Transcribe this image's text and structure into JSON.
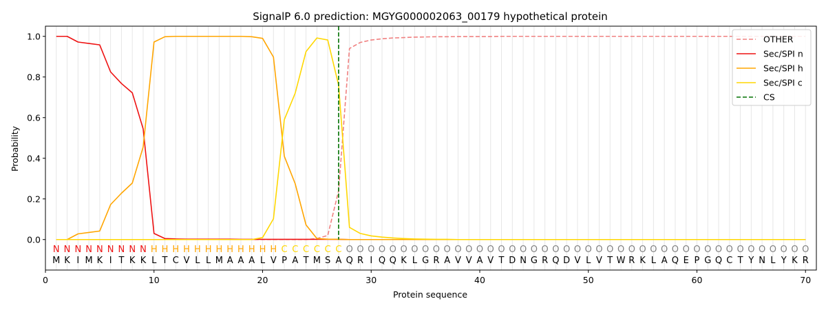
{
  "chart_data": {
    "type": "line",
    "title": "SignalP 6.0 prediction: MGYG000002063_00179 hypothetical protein",
    "xlabel": "Protein sequence",
    "ylabel": "Probability",
    "xlim": [
      0,
      71
    ],
    "ylim": [
      -0.15,
      1.05
    ],
    "xticks": [
      0,
      10,
      20,
      30,
      40,
      50,
      60,
      70
    ],
    "yticks": [
      0.0,
      0.2,
      0.4,
      0.6,
      0.8,
      1.0
    ],
    "vertical_gridlines": "every residue position",
    "legend_position": "top-right",
    "x": [
      1,
      2,
      3,
      4,
      5,
      6,
      7,
      8,
      9,
      10,
      11,
      12,
      13,
      14,
      15,
      16,
      17,
      18,
      19,
      20,
      21,
      22,
      23,
      24,
      25,
      26,
      27,
      28,
      29,
      30,
      31,
      32,
      33,
      34,
      35,
      36,
      37,
      38,
      39,
      40,
      41,
      42,
      43,
      44,
      45,
      46,
      47,
      48,
      49,
      50,
      51,
      52,
      53,
      54,
      55,
      56,
      57,
      58,
      59,
      60,
      61,
      62,
      63,
      64,
      65,
      66,
      67,
      68,
      69,
      70
    ],
    "sequence": [
      "M",
      "K",
      "I",
      "M",
      "K",
      "I",
      "T",
      "K",
      "K",
      "L",
      "T",
      "C",
      "V",
      "L",
      "L",
      "M",
      "A",
      "A",
      "A",
      "L",
      "V",
      "P",
      "A",
      "T",
      "M",
      "S",
      "A",
      "Q",
      "R",
      "I",
      "Q",
      "Q",
      "K",
      "L",
      "G",
      "R",
      "A",
      "V",
      "V",
      "A",
      "V",
      "T",
      "D",
      "N",
      "G",
      "R",
      "Q",
      "D",
      "V",
      "L",
      "V",
      "T",
      "W",
      "R",
      "K",
      "L",
      "A",
      "Q",
      "E",
      "P",
      "G",
      "Q",
      "C",
      "T",
      "Y",
      "N",
      "L",
      "Y",
      "K",
      "R"
    ],
    "labels": [
      "N",
      "N",
      "N",
      "N",
      "N",
      "N",
      "N",
      "N",
      "N",
      "H",
      "H",
      "H",
      "H",
      "H",
      "H",
      "H",
      "H",
      "H",
      "H",
      "H",
      "H",
      "C",
      "C",
      "C",
      "C",
      "C",
      "C",
      "O",
      "O",
      "O",
      "O",
      "O",
      "O",
      "O",
      "O",
      "O",
      "O",
      "O",
      "O",
      "O",
      "O",
      "O",
      "O",
      "O",
      "O",
      "O",
      "O",
      "O",
      "O",
      "O",
      "O",
      "O",
      "O",
      "O",
      "O",
      "O",
      "O",
      "O",
      "O",
      "O",
      "O",
      "O",
      "O",
      "O",
      "O",
      "O",
      "O",
      "O",
      "O",
      "O"
    ],
    "label_colors": {
      "N": "#ee1111",
      "H": "#ffa500",
      "C": "#ffd700",
      "O": "#808080"
    },
    "cleavage_site": 27,
    "series": [
      {
        "name": "OTHER",
        "color": "#f08080",
        "dash": "dashed",
        "values": [
          0,
          0,
          0,
          0,
          0,
          0,
          0,
          0,
          0,
          0,
          0,
          0,
          0,
          0,
          0,
          0,
          0,
          0,
          0,
          0,
          0,
          0,
          0,
          0,
          0.005,
          0.02,
          0.24,
          0.94,
          0.97,
          0.982,
          0.988,
          0.992,
          0.994,
          0.996,
          0.997,
          0.998,
          0.998,
          0.999,
          0.999,
          0.999,
          0.999,
          1,
          1,
          1,
          1,
          1,
          1,
          1,
          1,
          1,
          1,
          1,
          1,
          1,
          1,
          1,
          1,
          1,
          1,
          1,
          1,
          1,
          1,
          1,
          1,
          1,
          1,
          1,
          1,
          1
        ]
      },
      {
        "name": "Sec/SPI n",
        "color": "#ee1111",
        "dash": "solid",
        "values": [
          1.0,
          1.0,
          0.972,
          0.965,
          0.958,
          0.825,
          0.768,
          0.722,
          0.545,
          0.03,
          0.005,
          0.003,
          0.002,
          0.002,
          0.002,
          0.002,
          0.002,
          0.001,
          0.001,
          0.001,
          0.001,
          0.001,
          0.001,
          0.001,
          0.001,
          0.001,
          0.001,
          0,
          0,
          0,
          0,
          0,
          0,
          0,
          0,
          0,
          0,
          0,
          0,
          0,
          0,
          0,
          0,
          0,
          0,
          0,
          0,
          0,
          0,
          0,
          0,
          0,
          0,
          0,
          0,
          0,
          0,
          0,
          0,
          0,
          0,
          0,
          0,
          0,
          0,
          0,
          0,
          0,
          0,
          0
        ]
      },
      {
        "name": "Sec/SPI h",
        "color": "#ffa500",
        "dash": "solid",
        "values": [
          0,
          0,
          0.028,
          0.035,
          0.042,
          0.172,
          0.228,
          0.278,
          0.455,
          0.972,
          0.998,
          1.0,
          1.0,
          1.0,
          1.0,
          1.0,
          1.0,
          1.0,
          0.998,
          0.99,
          0.898,
          0.41,
          0.275,
          0.072,
          0.005,
          0.002,
          0.001,
          0,
          0,
          0,
          0,
          0,
          0,
          0,
          0,
          0,
          0,
          0,
          0,
          0,
          0,
          0,
          0,
          0,
          0,
          0,
          0,
          0,
          0,
          0,
          0,
          0,
          0,
          0,
          0,
          0,
          0,
          0,
          0,
          0,
          0,
          0,
          0,
          0,
          0,
          0,
          0,
          0,
          0,
          0
        ]
      },
      {
        "name": "Sec/SPI c",
        "color": "#ffd700",
        "dash": "solid",
        "values": [
          0,
          0,
          0,
          0,
          0,
          0,
          0,
          0,
          0,
          0,
          0,
          0,
          0,
          0,
          0,
          0,
          0,
          0,
          0,
          0.01,
          0.102,
          0.59,
          0.72,
          0.925,
          0.992,
          0.982,
          0.76,
          0.06,
          0.03,
          0.018,
          0.012,
          0.008,
          0.005,
          0.003,
          0.002,
          0.001,
          0.001,
          0,
          0,
          0,
          0,
          0,
          0,
          0,
          0,
          0,
          0,
          0,
          0,
          0,
          0,
          0,
          0,
          0,
          0,
          0,
          0,
          0,
          0,
          0,
          0,
          0,
          0,
          0,
          0,
          0,
          0,
          0,
          0,
          0
        ]
      }
    ],
    "cs_series": {
      "name": "CS",
      "color": "#007000",
      "dash": "dashed"
    }
  }
}
